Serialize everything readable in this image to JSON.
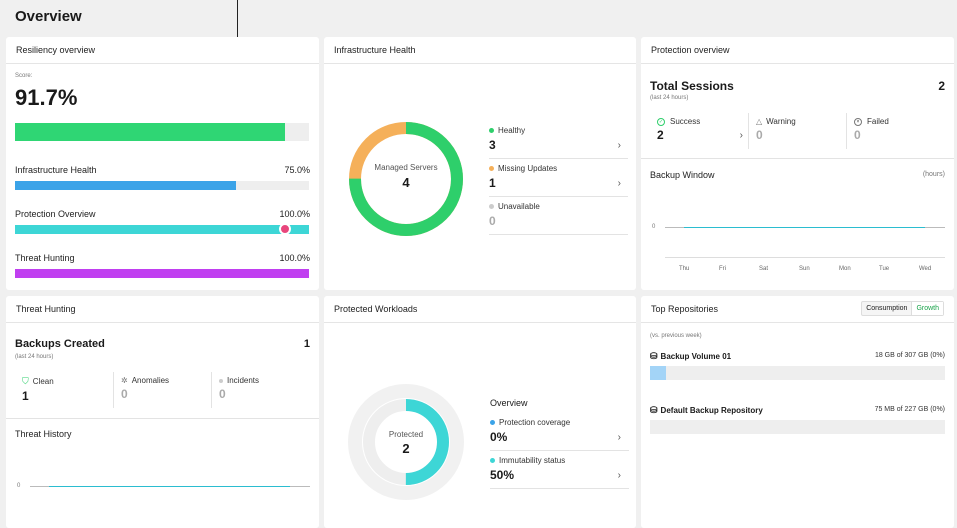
{
  "page": {
    "title": "Overview"
  },
  "resiliency": {
    "title": "Resiliency overview",
    "score_label": "Score:",
    "score": "91.7%",
    "score_fraction": 0.917,
    "metrics": [
      {
        "label": "Infrastructure Health",
        "value": "75.0%",
        "fraction": 0.75,
        "color": "#3ba3e8"
      },
      {
        "label": "Protection Overview",
        "value": "100.0%",
        "fraction": 1.0,
        "color": "#3dd6d6"
      },
      {
        "label": "Threat Hunting",
        "value": "100.0%",
        "fraction": 1.0,
        "color": "#c03ff0"
      }
    ]
  },
  "infra": {
    "title": "Infrastructure Health",
    "donut_label": "Managed Servers",
    "donut_value": "4",
    "rows": [
      {
        "label": "Healthy",
        "value": "3",
        "color": "#2ecf6b"
      },
      {
        "label": "Missing Updates",
        "value": "1",
        "color": "#f5b05a"
      },
      {
        "label": "Unavailable",
        "value": "0",
        "color": "#cccccc"
      }
    ]
  },
  "protection": {
    "title": "Protection overview",
    "sessions_label": "Total Sessions",
    "sessions_value": "2",
    "sessions_sub": "(last 24 hours)",
    "stats": [
      {
        "label": "Success",
        "value": "2",
        "icon": "check-circle-icon"
      },
      {
        "label": "Warning",
        "value": "0",
        "icon": "warning-icon"
      },
      {
        "label": "Failed",
        "value": "0",
        "icon": "x-circle-icon"
      }
    ],
    "backup_window_label": "Backup Window",
    "backup_window_unit": "(hours)",
    "y_zero": "0",
    "days": [
      "Thu",
      "Fri",
      "Sat",
      "Sun",
      "Mon",
      "Tue",
      "Wed"
    ]
  },
  "threat": {
    "title": "Threat Hunting",
    "backups_label": "Backups Created",
    "backups_value": "1",
    "backups_sub": "(last 24 hours)",
    "stats": [
      {
        "label": "Clean",
        "value": "1",
        "icon": "shield-check-icon"
      },
      {
        "label": "Anomalies",
        "value": "0",
        "icon": "bug-icon"
      },
      {
        "label": "Incidents",
        "value": "0",
        "icon": "dot-icon"
      }
    ],
    "history_label": "Threat History",
    "y_zero": "0"
  },
  "workloads": {
    "title": "Protected Workloads",
    "donut_label": "Protected",
    "donut_value": "2",
    "overview_label": "Overview",
    "rows": [
      {
        "label": "Protection coverage",
        "value": "0%",
        "color": "#3ba3e8"
      },
      {
        "label": "Immutability status",
        "value": "50%",
        "color": "#3dd6d6"
      }
    ]
  },
  "repos": {
    "title": "Top Repositories",
    "toggle_consumption": "Consumption",
    "toggle_growth": "Growth",
    "sub": "(vs. previous week)",
    "items": [
      {
        "name": "Backup Volume 01",
        "usage": "18 GB of 307 GB (0%)",
        "fraction": 0.055
      },
      {
        "name": "Default Backup Repository",
        "usage": "75 MB of 227 GB (0%)",
        "fraction": 0
      }
    ]
  }
}
